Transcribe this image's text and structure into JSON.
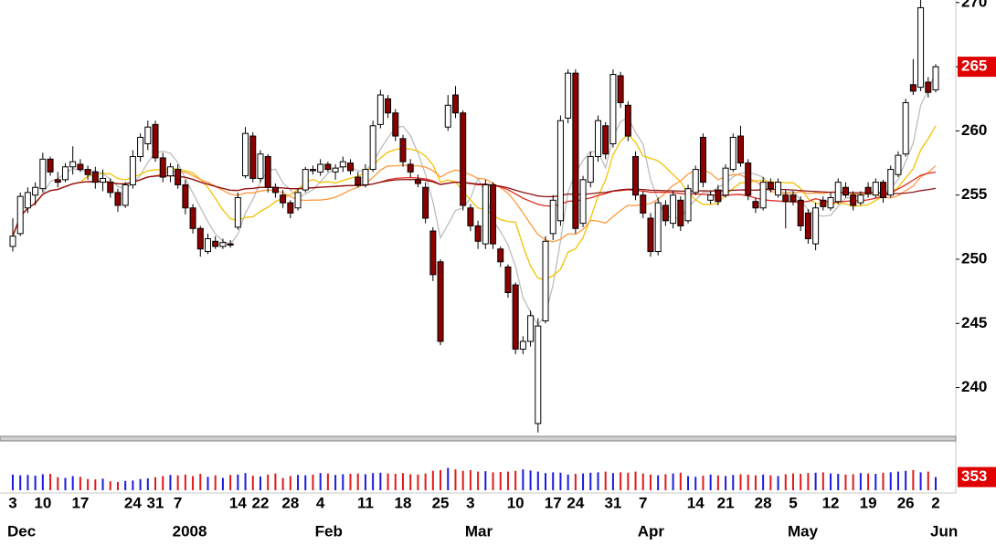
{
  "chart_data": {
    "type": "candlestick",
    "categories": [
      "3",
      null,
      null,
      null,
      "10",
      null,
      null,
      null,
      null,
      "17",
      null,
      null,
      null,
      null,
      null,
      null,
      "24",
      null,
      null,
      "31",
      null,
      null,
      "7",
      null,
      null,
      null,
      null,
      null,
      null,
      null,
      "14",
      null,
      null,
      "22",
      null,
      null,
      null,
      "28",
      null,
      null,
      null,
      "4",
      null,
      null,
      null,
      null,
      null,
      "11",
      null,
      null,
      null,
      null,
      "18",
      null,
      null,
      null,
      null,
      "25",
      null,
      null,
      null,
      "3",
      null,
      null,
      null,
      null,
      null,
      "10",
      null,
      null,
      null,
      null,
      "17",
      null,
      null,
      "24",
      null,
      null,
      null,
      null,
      "31",
      null,
      null,
      null,
      "7",
      null,
      null,
      null,
      null,
      null,
      null,
      "14",
      null,
      null,
      null,
      "21",
      null,
      null,
      null,
      null,
      "28",
      null,
      null,
      null,
      "5",
      null,
      null,
      null,
      null,
      "12",
      null,
      null,
      null,
      null,
      "19",
      null,
      null,
      null,
      null,
      "26",
      null,
      null,
      null,
      "2"
    ],
    "months": [
      "Dec",
      null,
      null,
      null,
      null,
      null,
      null,
      null,
      null,
      null,
      null,
      null,
      null,
      null,
      null,
      null,
      null,
      null,
      null,
      null,
      null,
      null,
      "2008",
      null,
      null,
      null,
      null,
      null,
      null,
      null,
      null,
      null,
      null,
      null,
      null,
      null,
      null,
      null,
      null,
      null,
      null,
      "Feb",
      null,
      null,
      null,
      null,
      null,
      null,
      null,
      null,
      null,
      null,
      null,
      null,
      null,
      null,
      null,
      null,
      null,
      null,
      null,
      "Mar",
      null,
      null,
      null,
      null,
      null,
      null,
      null,
      null,
      null,
      null,
      null,
      null,
      null,
      null,
      null,
      null,
      null,
      null,
      null,
      null,
      null,
      null,
      "Apr",
      null,
      null,
      null,
      null,
      null,
      null,
      null,
      null,
      null,
      null,
      null,
      null,
      null,
      null,
      null,
      null,
      null,
      null,
      null,
      "May",
      null,
      null,
      null,
      null,
      null,
      null,
      null,
      null,
      null,
      null,
      null,
      null,
      null,
      null,
      null,
      null,
      null,
      null,
      "Jun"
    ],
    "ohlc": [
      [
        251.0,
        253.2,
        250.6,
        251.8
      ],
      [
        252.0,
        255.2,
        251.8,
        254.9
      ],
      [
        254.0,
        255.6,
        253.6,
        255.2
      ],
      [
        255.0,
        256.0,
        254.2,
        255.6
      ],
      [
        255.5,
        258.3,
        255.2,
        257.8
      ],
      [
        257.8,
        258.0,
        256.5,
        256.8
      ],
      [
        256.2,
        256.8,
        255.6,
        256.0
      ],
      [
        256.2,
        257.5,
        256.0,
        257.2
      ],
      [
        257.2,
        258.8,
        256.6,
        257.6
      ],
      [
        257.4,
        257.8,
        256.8,
        257.0
      ],
      [
        257.0,
        257.3,
        256.2,
        256.6
      ],
      [
        256.8,
        257.2,
        255.5,
        256.0
      ],
      [
        256.0,
        257.0,
        255.3,
        256.3
      ],
      [
        256.0,
        256.3,
        254.8,
        255.2
      ],
      [
        255.2,
        255.5,
        253.7,
        254.2
      ],
      [
        254.2,
        256.0,
        254.0,
        255.8
      ],
      [
        255.8,
        258.5,
        255.5,
        258.0
      ],
      [
        258.0,
        259.8,
        257.6,
        259.5
      ],
      [
        259.0,
        260.8,
        258.5,
        260.3
      ],
      [
        260.5,
        260.8,
        257.6,
        257.9
      ],
      [
        257.9,
        258.3,
        256.0,
        256.4
      ],
      [
        256.5,
        257.5,
        256.0,
        257.2
      ],
      [
        257.0,
        257.4,
        255.5,
        255.8
      ],
      [
        255.8,
        256.2,
        253.5,
        254.0
      ],
      [
        254.0,
        254.3,
        252.0,
        252.4
      ],
      [
        252.4,
        252.6,
        250.2,
        250.8
      ],
      [
        250.6,
        252.0,
        250.4,
        251.6
      ],
      [
        251.4,
        251.8,
        250.8,
        251.0
      ],
      [
        251.0,
        251.6,
        250.8,
        251.3
      ],
      [
        251.2,
        251.5,
        250.9,
        251.1
      ],
      [
        252.5,
        255.2,
        252.3,
        254.8
      ],
      [
        256.5,
        260.3,
        256.3,
        259.8
      ],
      [
        259.6,
        259.9,
        256.0,
        256.3
      ],
      [
        256.3,
        258.5,
        256.0,
        258.2
      ],
      [
        258.0,
        258.2,
        255.2,
        255.6
      ],
      [
        255.6,
        255.9,
        254.8,
        255.2
      ],
      [
        255.0,
        255.4,
        254.0,
        254.4
      ],
      [
        254.4,
        254.6,
        253.2,
        253.6
      ],
      [
        254.0,
        255.5,
        253.8,
        255.2
      ],
      [
        255.4,
        257.2,
        255.2,
        257.0
      ],
      [
        257.0,
        257.3,
        256.6,
        256.9
      ],
      [
        256.8,
        257.8,
        256.5,
        257.4
      ],
      [
        257.4,
        257.6,
        256.8,
        257.0
      ],
      [
        256.8,
        257.4,
        256.2,
        257.1
      ],
      [
        257.2,
        258.0,
        256.8,
        257.6
      ],
      [
        257.5,
        257.8,
        256.6,
        256.9
      ],
      [
        256.4,
        256.8,
        255.6,
        255.8
      ],
      [
        255.8,
        257.4,
        255.6,
        257.0
      ],
      [
        257.0,
        260.8,
        256.8,
        260.4
      ],
      [
        260.5,
        263.2,
        260.2,
        262.8
      ],
      [
        262.5,
        262.8,
        261.0,
        261.4
      ],
      [
        261.4,
        261.7,
        259.2,
        259.6
      ],
      [
        259.4,
        259.7,
        257.2,
        257.6
      ],
      [
        257.4,
        257.8,
        256.4,
        256.8
      ],
      [
        256.2,
        256.6,
        255.6,
        255.9
      ],
      [
        255.6,
        256.0,
        252.8,
        253.2
      ],
      [
        252.2,
        252.5,
        248.3,
        248.8
      ],
      [
        249.8,
        250.0,
        243.3,
        243.6
      ],
      [
        260.3,
        262.8,
        260.0,
        262.0
      ],
      [
        262.8,
        263.5,
        261.0,
        261.4
      ],
      [
        261.4,
        261.6,
        253.8,
        254.2
      ],
      [
        254.0,
        254.3,
        252.2,
        252.6
      ],
      [
        252.6,
        253.0,
        250.8,
        251.4
      ],
      [
        251.2,
        256.2,
        250.8,
        255.8
      ],
      [
        255.8,
        256.0,
        250.8,
        251.2
      ],
      [
        250.8,
        251.0,
        249.4,
        249.8
      ],
      [
        249.4,
        249.6,
        247.0,
        247.4
      ],
      [
        248.0,
        248.2,
        242.6,
        243.0
      ],
      [
        243.0,
        244.0,
        242.6,
        243.6
      ],
      [
        243.6,
        246.0,
        243.2,
        245.6
      ],
      [
        237.2,
        245.4,
        236.5,
        244.8
      ],
      [
        245.2,
        251.8,
        245.0,
        251.4
      ],
      [
        252.0,
        255.0,
        251.5,
        254.6
      ],
      [
        253.0,
        261.2,
        252.6,
        260.8
      ],
      [
        261.0,
        264.8,
        260.6,
        264.5
      ],
      [
        264.5,
        264.8,
        252.0,
        252.4
      ],
      [
        252.8,
        256.5,
        252.5,
        256.2
      ],
      [
        256.0,
        258.4,
        255.6,
        258.0
      ],
      [
        258.0,
        261.2,
        257.6,
        260.8
      ],
      [
        260.4,
        260.7,
        257.8,
        258.2
      ],
      [
        259.0,
        264.8,
        258.7,
        264.4
      ],
      [
        264.3,
        264.6,
        261.8,
        262.2
      ],
      [
        262.0,
        262.3,
        259.2,
        259.6
      ],
      [
        258.0,
        258.4,
        254.6,
        255.0
      ],
      [
        255.0,
        255.3,
        253.2,
        253.6
      ],
      [
        253.2,
        253.6,
        250.2,
        250.6
      ],
      [
        250.6,
        254.8,
        250.3,
        254.4
      ],
      [
        254.2,
        254.6,
        252.6,
        253.0
      ],
      [
        252.8,
        255.3,
        252.4,
        255.0
      ],
      [
        254.6,
        254.9,
        252.2,
        252.6
      ],
      [
        253.0,
        255.8,
        252.8,
        255.5
      ],
      [
        255.2,
        257.3,
        255.0,
        257.0
      ],
      [
        259.5,
        259.8,
        255.6,
        256.0
      ],
      [
        254.6,
        255.3,
        254.3,
        255.0
      ],
      [
        255.4,
        255.8,
        254.2,
        254.5
      ],
      [
        255.0,
        257.4,
        254.8,
        257.1
      ],
      [
        257.0,
        259.8,
        256.8,
        259.5
      ],
      [
        259.6,
        260.4,
        257.2,
        257.5
      ],
      [
        257.5,
        257.8,
        254.6,
        255.0
      ],
      [
        254.5,
        254.8,
        253.6,
        254.0
      ],
      [
        254.0,
        256.4,
        253.8,
        256.0
      ],
      [
        256.0,
        256.3,
        255.2,
        255.5
      ],
      [
        255.0,
        256.3,
        254.8,
        256.0
      ],
      [
        255.0,
        255.4,
        252.4,
        254.5
      ],
      [
        255.0,
        255.3,
        254.2,
        254.5
      ],
      [
        254.6,
        254.9,
        252.2,
        252.6
      ],
      [
        253.6,
        253.9,
        251.2,
        251.6
      ],
      [
        251.2,
        254.4,
        250.7,
        254.0
      ],
      [
        254.6,
        254.9,
        253.8,
        254.1
      ],
      [
        254.0,
        255.2,
        253.8,
        254.8
      ],
      [
        254.5,
        256.3,
        254.3,
        256.0
      ],
      [
        255.6,
        256.0,
        254.8,
        255.0
      ],
      [
        255.0,
        255.3,
        253.8,
        254.2
      ],
      [
        254.4,
        255.3,
        254.2,
        255.0
      ],
      [
        255.6,
        256.0,
        254.8,
        255.1
      ],
      [
        255.0,
        256.3,
        254.8,
        256.0
      ],
      [
        256.0,
        256.2,
        254.4,
        254.8
      ],
      [
        255.0,
        257.3,
        254.8,
        257.0
      ],
      [
        256.6,
        258.4,
        256.4,
        258.1
      ],
      [
        258.2,
        262.5,
        258.0,
        262.2
      ],
      [
        263.6,
        265.6,
        262.8,
        263.1
      ],
      [
        263.4,
        270.6,
        263.1,
        269.6
      ],
      [
        263.8,
        264.2,
        262.6,
        263.0
      ],
      [
        263.2,
        265.2,
        263.0,
        265.0
      ]
    ],
    "volume": [
      420,
      400,
      410,
      390,
      430,
      440,
      350,
      330,
      380,
      360,
      300,
      290,
      310,
      240,
      220,
      250,
      260,
      300,
      320,
      350,
      380,
      410,
      400,
      420,
      380,
      440,
      360,
      400,
      330,
      410,
      420,
      460,
      390,
      370,
      420,
      450,
      330,
      380,
      410,
      400,
      420,
      460,
      450,
      410,
      430,
      440,
      450,
      430,
      460,
      470,
      450,
      440,
      460,
      430,
      420,
      450,
      520,
      540,
      600,
      560,
      520,
      540,
      500,
      510,
      480,
      490,
      500,
      520,
      560,
      530,
      500,
      460,
      480,
      470,
      420,
      440,
      450,
      470,
      480,
      500,
      460,
      480,
      470,
      500,
      450,
      420,
      400,
      430,
      450,
      470,
      380,
      360,
      390,
      420,
      400,
      380,
      410,
      430,
      420,
      400,
      420,
      400,
      380,
      430,
      450,
      440,
      460,
      470,
      480,
      450,
      440,
      420,
      430,
      460,
      450,
      440,
      470,
      480,
      500,
      520,
      540,
      480,
      500,
      353
    ],
    "ylim": [
      236.2,
      270.2
    ],
    "yticks": [
      240,
      245,
      250,
      255,
      260,
      265,
      270
    ],
    "volume_ylim": [
      0,
      1200
    ],
    "overlays": [
      {
        "period": 5,
        "color": "#bdbdbd"
      },
      {
        "period": 10,
        "color": "#f2c200"
      },
      {
        "period": 20,
        "color": "#ff9a40"
      },
      {
        "period": 50,
        "color": "#e02a20"
      },
      {
        "period": 100,
        "color": "#8e1414"
      }
    ],
    "colors": {
      "up": "#ffffff",
      "down": "#8b0000",
      "volume_up": "#1a1ae0",
      "volume_down": "#e01a1a",
      "last": "#e00000"
    }
  }
}
